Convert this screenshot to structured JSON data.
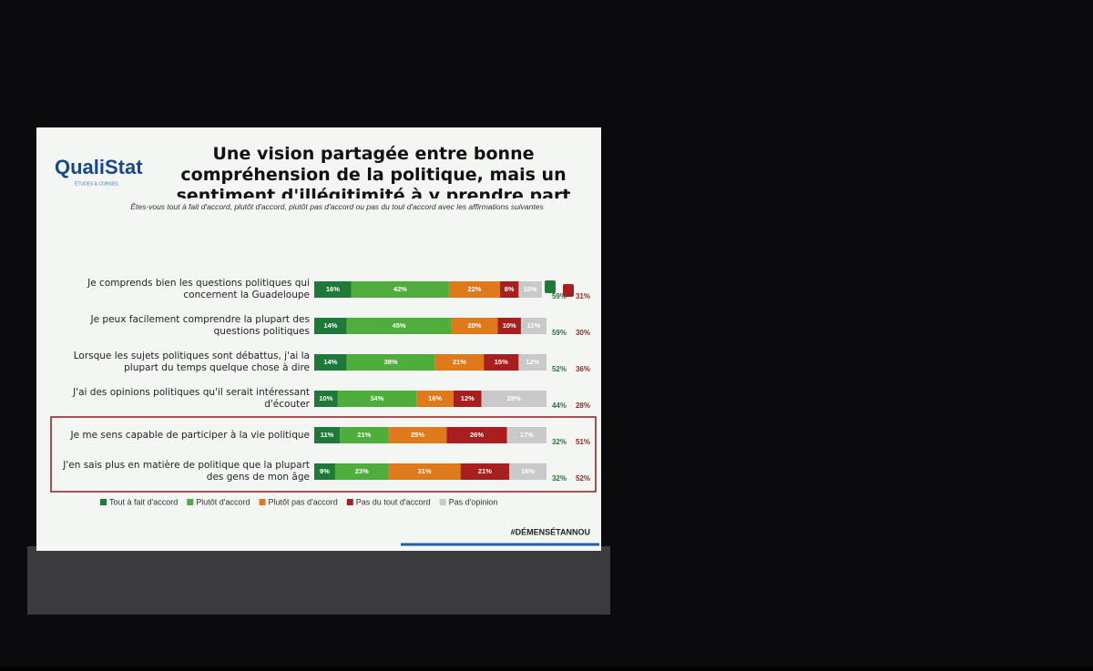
{
  "slide": {
    "logo": "QualiStat",
    "tagline": "ÉTUDES & CONSEIL",
    "hashtag": "#DÉMENSÉTANNOU"
  },
  "chart_data": {
    "type": "stacked-bar-horizontal",
    "title": "Une vision partagée entre bonne compréhension de la politique, mais un sentiment d'illégitimité à y prendre part",
    "subtitle": "Êtes-vous tout à fait d'accord, plutôt d'accord, plutôt pas d'accord ou pas du tout d'accord avec les affirmations suivantes",
    "categories": [
      "Je comprends bien les questions politiques qui concernent la Guadeloupe",
      "Je peux facilement comprendre la plupart des questions politiques",
      "Lorsque les sujets politiques sont débattus, j'ai la plupart du temps quelque chose à dire",
      "J'ai des opinions politiques qu'il serait intéressant d'écouter",
      "Je me sens capable de participer à la vie politique",
      "J'en sais plus en matière de politique que la plupart des gens de mon âge"
    ],
    "xlim": [
      0,
      100
    ],
    "series": [
      {
        "name": "Tout à fait d'accord",
        "color": "#1f7a3a",
        "values": [
          16,
          14,
          14,
          10,
          11,
          9
        ],
        "value_labels": [
          "16%",
          "14%",
          "14%",
          "10%",
          "11%",
          "9%"
        ]
      },
      {
        "name": "Plutôt d'accord",
        "color": "#4fae3b",
        "values": [
          42,
          45,
          38,
          34,
          21,
          23
        ],
        "value_labels": [
          "42%",
          "45%",
          "38%",
          "34%",
          "21%",
          "23%"
        ]
      },
      {
        "name": "Plutôt pas d'accord",
        "color": "#de7a1c",
        "values": [
          22,
          20,
          21,
          16,
          25,
          31
        ],
        "value_labels": [
          "22%",
          "20%",
          "21%",
          "16%",
          "25%",
          "31%"
        ]
      },
      {
        "name": "Pas du tout d'accord",
        "color": "#a81f1f",
        "values": [
          8,
          10,
          15,
          12,
          26,
          21
        ],
        "value_labels": [
          "8%",
          "10%",
          "15%",
          "12%",
          "26%",
          "21%"
        ]
      },
      {
        "name": "Pas d'opinion",
        "color": "#c9c9c9",
        "values": [
          10,
          11,
          12,
          28,
          17,
          16
        ],
        "value_labels": [
          "10%",
          "11%",
          "12%",
          "28%",
          "17%",
          "16%"
        ]
      }
    ],
    "agree_totals": {
      "color": "#1f7a3a",
      "values": [
        59,
        59,
        52,
        44,
        32,
        32
      ],
      "value_labels": [
        "59%",
        "59%",
        "52%",
        "44%",
        "32%",
        "32%"
      ]
    },
    "disagree_totals": {
      "color": "#a81f1f",
      "values": [
        31,
        30,
        36,
        28,
        51,
        52
      ],
      "value_labels": [
        "31%",
        "30%",
        "36%",
        "28%",
        "51%",
        "52%"
      ]
    }
  }
}
